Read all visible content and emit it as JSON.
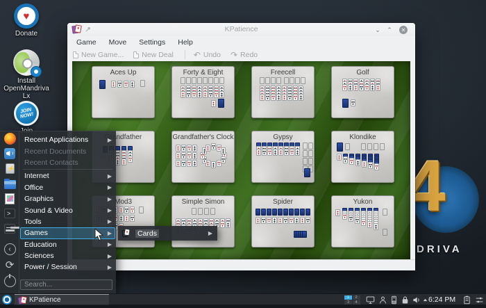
{
  "desktop": {
    "icons": [
      {
        "label": "Donate",
        "icon": "donate-heart"
      },
      {
        "label": "Install OpenMandriva Lx",
        "icon": "install-disc"
      },
      {
        "label": "Join",
        "icon": "join-badge",
        "badge_text": "JOIN NOW!"
      }
    ],
    "logo_numeral": "4",
    "logo_text": "DRIVA"
  },
  "launcher": {
    "favorites": [
      {
        "icon": "firefox"
      },
      {
        "icon": "announcement"
      },
      {
        "icon": "usb-device"
      },
      {
        "icon": "file-manager"
      },
      {
        "icon": "image-viewer"
      },
      {
        "icon": "terminal"
      },
      {
        "icon": "settings-sliders"
      }
    ],
    "session": [
      {
        "icon": "back-circle",
        "glyph": "‹"
      },
      {
        "icon": "restart-circle",
        "glyph": "⟳"
      },
      {
        "icon": "shutdown-circle",
        "glyph": ""
      }
    ],
    "items": [
      {
        "label": "Recent Applications",
        "submenu": true,
        "enabled": true
      },
      {
        "label": "Recent Documents",
        "submenu": false,
        "enabled": false
      },
      {
        "label": "Recent Contacts",
        "submenu": false,
        "enabled": false
      },
      {
        "label": "Internet",
        "submenu": true,
        "enabled": true,
        "sep_before": true
      },
      {
        "label": "Office",
        "submenu": true,
        "enabled": true
      },
      {
        "label": "Graphics",
        "submenu": true,
        "enabled": true
      },
      {
        "label": "Sound & Video",
        "submenu": true,
        "enabled": true
      },
      {
        "label": "Tools",
        "submenu": true,
        "enabled": true
      },
      {
        "label": "Games",
        "submenu": true,
        "enabled": true,
        "highlighted": true
      },
      {
        "label": "Education",
        "submenu": true,
        "enabled": true
      },
      {
        "label": "Sciences",
        "submenu": true,
        "enabled": true
      },
      {
        "label": "Power / Session",
        "submenu": true,
        "enabled": true
      }
    ],
    "search_placeholder": "Search...",
    "submenu_items": [
      {
        "label": "Cards",
        "icon": "cards",
        "submenu": true,
        "highlighted": true
      }
    ]
  },
  "window": {
    "title": "KPatience",
    "menubar": [
      "Game",
      "Move",
      "Settings",
      "Help"
    ],
    "toolbar": [
      {
        "label": "New Game...",
        "icon": "document-new"
      },
      {
        "label": "New Deal",
        "icon": "document-new"
      },
      {
        "label": "Undo",
        "icon": "undo-arrow",
        "sep_before": true,
        "glyph": "↶"
      },
      {
        "label": "Redo",
        "icon": "redo-arrow",
        "glyph": "↷"
      }
    ],
    "games": [
      {
        "name": "Aces Up",
        "layout": [
          [
            7,
            4,
            "D",
            1
          ],
          [
            24,
            5,
            "u",
            4,
            9,
            0
          ],
          [
            66,
            4,
            "o",
            1
          ]
        ]
      },
      {
        "name": "Forty & Eight",
        "layout": [
          [
            9,
            0,
            "o",
            8,
            8,
            0
          ],
          [
            9,
            12,
            "u",
            8,
            8,
            0
          ],
          [
            9,
            16,
            "u",
            8,
            8,
            0
          ],
          [
            9,
            20,
            "u",
            8,
            8,
            0
          ],
          [
            53,
            33,
            "u",
            1
          ],
          [
            63,
            31,
            "D",
            1
          ]
        ]
      },
      {
        "name": "Freecell",
        "layout": [
          [
            8,
            0,
            "o",
            4,
            8,
            0
          ],
          [
            43,
            0,
            "o",
            4,
            8,
            0
          ],
          [
            8,
            12,
            "u",
            8,
            8,
            0
          ],
          [
            8,
            16,
            "u",
            8,
            8,
            0
          ],
          [
            8,
            20,
            "u",
            8,
            8,
            0
          ],
          [
            8,
            24,
            "u",
            8,
            8,
            0
          ]
        ]
      },
      {
        "name": "Golf",
        "layout": [
          [
            12,
            2,
            "u",
            7,
            8,
            0
          ],
          [
            12,
            6,
            "u",
            7,
            8,
            0
          ],
          [
            12,
            10,
            "u",
            7,
            8,
            0
          ],
          [
            12,
            31,
            "D",
            1
          ],
          [
            24,
            32,
            "u",
            1
          ]
        ]
      },
      {
        "name": "Grandfather",
        "layout": [
          [
            12,
            6,
            "d",
            5,
            9,
            0
          ],
          [
            21,
            12,
            "u",
            4,
            9,
            0
          ],
          [
            21,
            16,
            "u",
            4,
            9,
            0
          ],
          [
            30,
            20,
            "u",
            3,
            9,
            0
          ],
          [
            30,
            24,
            "u",
            2,
            9,
            0
          ]
        ]
      },
      {
        "name": "Grandfather's Clock",
        "layout": [
          [
            2,
            4,
            "u",
            4,
            8,
            0
          ],
          [
            2,
            15,
            "u",
            4,
            8,
            0
          ],
          [
            2,
            26,
            "u",
            4,
            8,
            0
          ],
          [
            69,
            15,
            "u",
            1
          ],
          [
            67,
            21,
            "u",
            1
          ],
          [
            61,
            26,
            "u",
            1
          ],
          [
            53,
            28,
            "u",
            1
          ],
          [
            45,
            26,
            "u",
            1
          ],
          [
            40,
            21,
            "u",
            1
          ],
          [
            37,
            15,
            "u",
            1
          ],
          [
            40,
            8,
            "u",
            1
          ],
          [
            45,
            4,
            "u",
            1
          ],
          [
            53,
            2,
            "u",
            1
          ],
          [
            61,
            4,
            "u",
            1
          ],
          [
            67,
            8,
            "u",
            1
          ]
        ]
      },
      {
        "name": "Gypsy",
        "layout": [
          [
            3,
            1,
            "d",
            8,
            8,
            0
          ],
          [
            3,
            6,
            "u",
            8,
            8,
            0
          ],
          [
            3,
            10,
            "u",
            8,
            8,
            0
          ],
          [
            70,
            1,
            "o",
            4,
            0,
            11
          ],
          [
            78,
            1,
            "o",
            4,
            0,
            11
          ],
          [
            72,
            38,
            "D",
            1
          ]
        ]
      },
      {
        "name": "Klondike",
        "layout": [
          [
            4,
            1,
            "D",
            1
          ],
          [
            16,
            2,
            "o",
            1
          ],
          [
            39,
            2,
            "o",
            4,
            9,
            0
          ],
          [
            4,
            17,
            "u",
            1
          ],
          [
            13,
            17,
            "d",
            1
          ],
          [
            13,
            21,
            "u",
            1
          ],
          [
            22,
            17,
            "d",
            2,
            0,
            2
          ],
          [
            22,
            23,
            "u",
            1
          ],
          [
            31,
            17,
            "d",
            3,
            0,
            2
          ],
          [
            31,
            25,
            "u",
            1
          ],
          [
            40,
            17,
            "d",
            4,
            0,
            2
          ],
          [
            40,
            27,
            "u",
            1
          ],
          [
            49,
            17,
            "d",
            5,
            0,
            2
          ],
          [
            49,
            29,
            "u",
            1
          ],
          [
            58,
            17,
            "d",
            6,
            0,
            2
          ],
          [
            58,
            31,
            "u",
            1
          ]
        ]
      },
      {
        "name": "Mod3",
        "layout": [
          [
            3,
            0,
            "u",
            7,
            8,
            0
          ],
          [
            64,
            0,
            "o",
            1
          ],
          [
            3,
            12,
            "u",
            7,
            8,
            0
          ],
          [
            3,
            24,
            "u",
            5,
            8,
            0
          ]
        ]
      },
      {
        "name": "Simple Simon",
        "layout": [
          [
            25,
            2,
            "o",
            4,
            9,
            0
          ],
          [
            2,
            17,
            "u",
            10,
            8,
            0
          ],
          [
            2,
            21,
            "u",
            10,
            8,
            0
          ],
          [
            2,
            25,
            "u",
            7,
            8,
            0
          ],
          [
            2,
            29,
            "u",
            3,
            8,
            0
          ]
        ]
      },
      {
        "name": "Spider",
        "layout": [
          [
            2,
            3,
            "d",
            10,
            8,
            0
          ],
          [
            2,
            15,
            "u",
            10,
            8,
            0
          ],
          [
            57,
            35,
            "d",
            5,
            3,
            0
          ]
        ]
      },
      {
        "name": "Yukon",
        "layout": [
          [
            2,
            4,
            "u",
            1
          ],
          [
            12,
            2,
            "d",
            1
          ],
          [
            12,
            6,
            "u",
            2,
            0,
            3
          ],
          [
            21,
            2,
            "d",
            1
          ],
          [
            21,
            6,
            "u",
            3,
            0,
            3
          ],
          [
            30,
            2,
            "d",
            1
          ],
          [
            30,
            6,
            "u",
            4,
            0,
            3
          ],
          [
            39,
            2,
            "d",
            1
          ],
          [
            39,
            6,
            "u",
            5,
            0,
            3
          ],
          [
            48,
            2,
            "d",
            1
          ],
          [
            48,
            6,
            "u",
            6,
            0,
            3
          ],
          [
            57,
            2,
            "d",
            1
          ],
          [
            57,
            6,
            "u",
            7,
            0,
            3
          ],
          [
            70,
            3,
            "o",
            1
          ],
          [
            70,
            32,
            "o",
            1
          ]
        ]
      }
    ]
  },
  "taskbar": {
    "task_label": "KPatience",
    "clock": "6:24 PM",
    "pager": {
      "workspaces": [
        "1",
        "2",
        "3",
        "4"
      ],
      "active_index": 0
    },
    "tray_icons": [
      "display-settings",
      "user",
      "removable-device",
      "screen-lock",
      "volume",
      "expander"
    ],
    "right_icons": [
      "clipboard-notes",
      "panel-edit"
    ]
  },
  "colors": {
    "highlight": "#3daee9",
    "felt_green": "#3a681e",
    "card_back_blue": "#2c4ea6",
    "chrome": "#eff0f1",
    "panel_dark": "#292d32"
  }
}
